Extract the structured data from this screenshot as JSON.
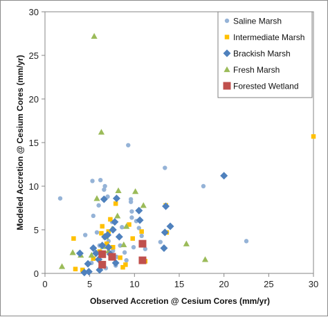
{
  "chart_data": {
    "type": "scatter",
    "title": "",
    "xlabel": "Observed Accretion @ Cesium Cores (mm/yr)",
    "ylabel": "Modeled Accretion @ Cesium Cores (mm/yr)",
    "xlim": [
      0,
      30
    ],
    "ylim": [
      0,
      30
    ],
    "xticks": [
      0,
      5,
      10,
      15,
      20,
      25,
      30
    ],
    "yticks": [
      0,
      5,
      10,
      15,
      20,
      25,
      30
    ],
    "grid": false,
    "legend_position": "top-right",
    "series": [
      {
        "name": "Saline Marsh",
        "marker": "circle",
        "color": "#95B3D7",
        "points": [
          [
            1.7,
            8.6
          ],
          [
            4.5,
            4.4
          ],
          [
            5.3,
            10.6
          ],
          [
            6.2,
            10.7
          ],
          [
            6.6,
            9.6
          ],
          [
            6.7,
            10.0
          ],
          [
            7.0,
            8.8
          ],
          [
            9.3,
            14.7
          ],
          [
            9.6,
            8.5
          ],
          [
            9.6,
            8.2
          ],
          [
            9.7,
            7.1
          ],
          [
            9.7,
            6.4
          ],
          [
            10.2,
            6.0
          ],
          [
            10.5,
            5.2
          ],
          [
            10.8,
            4.3
          ],
          [
            11.0,
            3.3
          ],
          [
            11.2,
            2.8
          ],
          [
            13.4,
            12.1
          ],
          [
            17.7,
            10.0
          ],
          [
            22.5,
            3.7
          ],
          [
            5.8,
            4.7
          ],
          [
            6.1,
            3.2
          ],
          [
            6.4,
            2.4
          ],
          [
            7.1,
            3.7
          ],
          [
            7.6,
            2.6
          ],
          [
            8.0,
            1.9
          ],
          [
            8.4,
            3.2
          ],
          [
            8.9,
            2.4
          ],
          [
            9.1,
            1.5
          ],
          [
            5.4,
            6.6
          ],
          [
            6.0,
            7.8
          ],
          [
            7.5,
            5.9
          ],
          [
            8.6,
            5.3
          ],
          [
            9.9,
            3.0
          ],
          [
            12.9,
            3.6
          ],
          [
            5.2,
            1.2
          ],
          [
            6.8,
            0.6
          ],
          [
            7.9,
            0.9
          ]
        ]
      },
      {
        "name": "Intermediate Marsh",
        "marker": "square",
        "color": "#FFC000",
        "points": [
          [
            3.2,
            4.0
          ],
          [
            3.4,
            0.5
          ],
          [
            4.2,
            0.4
          ],
          [
            5.4,
            1.7
          ],
          [
            6.1,
            2.5
          ],
          [
            6.3,
            4.6
          ],
          [
            6.4,
            5.4
          ],
          [
            6.9,
            3.4
          ],
          [
            7.1,
            4.8
          ],
          [
            7.6,
            3.0
          ],
          [
            7.9,
            8.0
          ],
          [
            8.4,
            1.8
          ],
          [
            8.7,
            0.7
          ],
          [
            9.0,
            1.0
          ],
          [
            9.4,
            5.6
          ],
          [
            9.8,
            4.0
          ],
          [
            10.8,
            4.8
          ],
          [
            11.2,
            1.4
          ],
          [
            13.6,
            4.7
          ],
          [
            13.5,
            7.8
          ],
          [
            30.0,
            15.7
          ],
          [
            7.3,
            6.2
          ]
        ]
      },
      {
        "name": "Brackish Marsh",
        "marker": "diamond",
        "color": "#4F81BD",
        "points": [
          [
            3.9,
            2.3
          ],
          [
            4.4,
            0.1
          ],
          [
            4.8,
            1.1
          ],
          [
            4.9,
            0.2
          ],
          [
            5.4,
            2.9
          ],
          [
            5.7,
            2.3
          ],
          [
            6.0,
            1.6
          ],
          [
            6.4,
            3.2
          ],
          [
            6.6,
            8.5
          ],
          [
            6.7,
            4.2
          ],
          [
            7.0,
            4.4
          ],
          [
            7.1,
            3.0
          ],
          [
            7.3,
            2.2
          ],
          [
            7.6,
            5.0
          ],
          [
            7.8,
            5.9
          ],
          [
            8.0,
            8.6
          ],
          [
            8.3,
            4.2
          ],
          [
            10.5,
            7.2
          ],
          [
            10.6,
            6.1
          ],
          [
            10.9,
            3.4
          ],
          [
            13.3,
            2.9
          ],
          [
            13.4,
            4.7
          ],
          [
            13.5,
            7.7
          ],
          [
            14.0,
            5.4
          ],
          [
            20.0,
            11.2
          ],
          [
            6.1,
            0.4
          ],
          [
            7.9,
            1.2
          ]
        ]
      },
      {
        "name": "Fresh Marsh",
        "marker": "triangle",
        "color": "#9BBB59",
        "points": [
          [
            1.9,
            0.8
          ],
          [
            3.1,
            2.4
          ],
          [
            4.0,
            2.1
          ],
          [
            5.2,
            2.1
          ],
          [
            5.5,
            27.2
          ],
          [
            5.8,
            8.6
          ],
          [
            6.1,
            0.6
          ],
          [
            6.3,
            16.2
          ],
          [
            6.5,
            3.1
          ],
          [
            7.1,
            2.6
          ],
          [
            7.5,
            5.1
          ],
          [
            8.1,
            6.6
          ],
          [
            8.2,
            9.5
          ],
          [
            8.8,
            3.3
          ],
          [
            9.1,
            5.4
          ],
          [
            10.1,
            9.4
          ],
          [
            11.0,
            7.8
          ],
          [
            15.8,
            3.4
          ],
          [
            17.9,
            1.6
          ],
          [
            6.8,
            4.2
          ],
          [
            7.6,
            1.8
          ]
        ]
      },
      {
        "name": "Forested Wetland",
        "marker": "square",
        "color": "#C0504D",
        "points": [
          [
            6.4,
            1.0
          ],
          [
            6.4,
            2.2
          ],
          [
            7.5,
            1.9
          ],
          [
            10.9,
            3.4
          ],
          [
            10.9,
            1.5
          ]
        ]
      }
    ]
  }
}
